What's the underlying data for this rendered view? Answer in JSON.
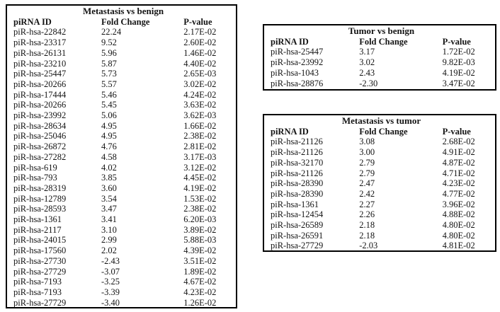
{
  "colors": {
    "background": "#ffffff",
    "border": "#000000",
    "text": "#141414"
  },
  "tables": [
    {
      "title": "Metastasis vs benign",
      "headers": [
        "piRNA ID",
        "Fold Change",
        "P-value"
      ],
      "rows": [
        [
          "piR-hsa-22842",
          "22.24",
          "2.17E-02"
        ],
        [
          "piR-hsa-23317",
          "9.52",
          "2.60E-02"
        ],
        [
          "piR-hsa-26131",
          "5.96",
          "1.46E-02"
        ],
        [
          "piR-hsa-23210",
          "5.87",
          "4.40E-02"
        ],
        [
          "piR-hsa-25447",
          "5.73",
          "2.65E-03"
        ],
        [
          "piR-hsa-20266",
          "5.57",
          "3.02E-02"
        ],
        [
          "piR-hsa-17444",
          "5.46",
          "4.24E-02"
        ],
        [
          "piR-hsa-20266",
          "5.45",
          "3.63E-02"
        ],
        [
          "piR-hsa-23992",
          "5.06",
          "3.62E-03"
        ],
        [
          "piR-hsa-28634",
          "4.95",
          "1.66E-02"
        ],
        [
          "piR-hsa-25046",
          "4.95",
          "2.38E-02"
        ],
        [
          "piR-hsa-26872",
          "4.76",
          "2.81E-02"
        ],
        [
          "piR-hsa-27282",
          "4.58",
          "3.17E-03"
        ],
        [
          "piR-hsa-619",
          "4.02",
          "3.12E-02"
        ],
        [
          "piR-hsa-793",
          "3.85",
          "4.45E-02"
        ],
        [
          "piR-hsa-28319",
          "3.60",
          "4.19E-02"
        ],
        [
          "piR-hsa-12789",
          "3.54",
          "1.53E-02"
        ],
        [
          "piR-hsa-28593",
          "3.47",
          "2.38E-02"
        ],
        [
          "piR-hsa-1361",
          "3.41",
          "6.20E-03"
        ],
        [
          "piR-hsa-2117",
          "3.10",
          "3.89E-02"
        ],
        [
          "piR-hsa-24015",
          "2.99",
          "5.88E-03"
        ],
        [
          "piR-hsa-17560",
          "2.02",
          "4.39E-02"
        ],
        [
          "piR-hsa-27730",
          "-2.43",
          "3.51E-02"
        ],
        [
          "piR-hsa-27729",
          "-3.07",
          "1.89E-02"
        ],
        [
          "piR-hsa-7193",
          "-3.25",
          "4.67E-02"
        ],
        [
          "piR-hsa-7193",
          "-3.39",
          "4.23E-02"
        ],
        [
          "piR-hsa-27729",
          "-3.40",
          "1.26E-02"
        ]
      ]
    },
    {
      "title": "Tumor vs benign",
      "headers": [
        "piRNA ID",
        "Fold Change",
        "P-value"
      ],
      "rows": [
        [
          "piR-hsa-25447",
          "3.17",
          "1.72E-02"
        ],
        [
          "piR-hsa-23992",
          "3.02",
          "9.82E-03"
        ],
        [
          "piR-hsa-1043",
          "2.43",
          "4.19E-02"
        ],
        [
          "piR-hsa-28876",
          "-2.30",
          "3.47E-02"
        ]
      ]
    },
    {
      "title": "Metastasis vs tumor",
      "headers": [
        "piRNA ID",
        "Fold Change",
        "P-value"
      ],
      "rows": [
        [
          "piR-hsa-21126",
          "3.08",
          "2.68E-02"
        ],
        [
          "piR-hsa-21126",
          "3.00",
          "4.91E-02"
        ],
        [
          "piR-hsa-32170",
          "2.79",
          "4.87E-02"
        ],
        [
          "piR-hsa-21126",
          "2.79",
          "4.71E-02"
        ],
        [
          "piR-hsa-28390",
          "2.47",
          "4.23E-02"
        ],
        [
          "piR-hsa-28390",
          "2.42",
          "4.77E-02"
        ],
        [
          "piR-hsa-1361",
          "2.27",
          "3.96E-02"
        ],
        [
          "piR-hsa-12454",
          "2.26",
          "4.88E-02"
        ],
        [
          "piR-hsa-26589",
          "2.18",
          "4.80E-02"
        ],
        [
          "piR-hsa-26591",
          "2.18",
          "4.80E-02"
        ],
        [
          "piR-hsa-27729",
          "-2.03",
          "4.81E-02"
        ]
      ]
    }
  ]
}
